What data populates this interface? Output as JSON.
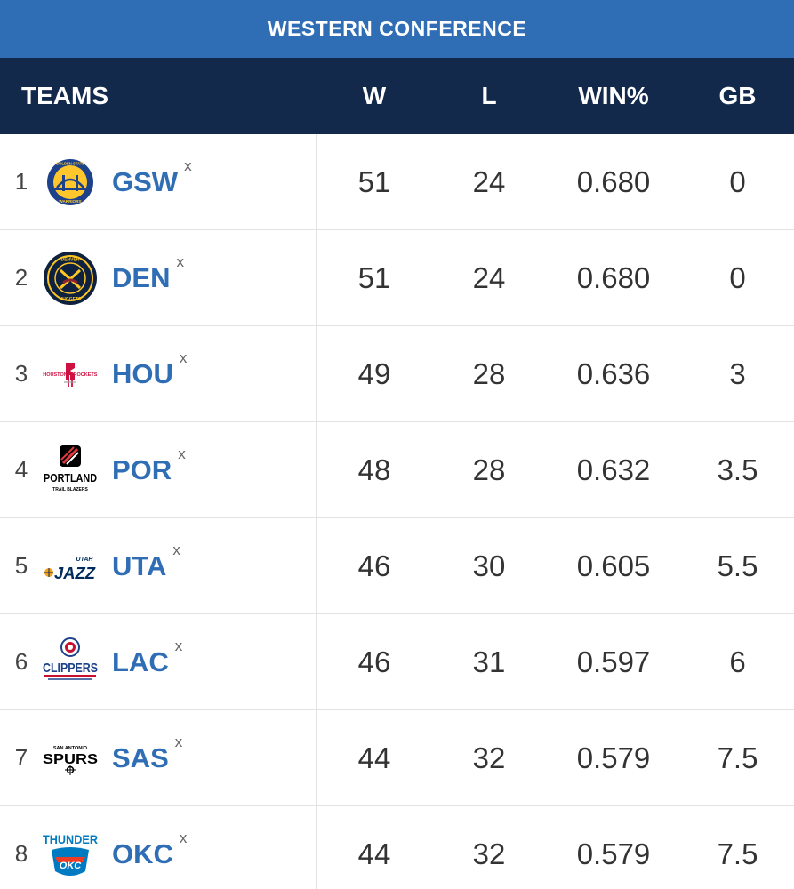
{
  "conference_title": "WESTERN CONFERENCE",
  "columns": {
    "teams": "TEAMS",
    "w": "W",
    "l": "L",
    "pct": "WIN%",
    "gb": "GB"
  },
  "teams": [
    {
      "rank": "1",
      "abbr": "GSW",
      "clinch": "x",
      "w": "51",
      "l": "24",
      "pct": "0.680",
      "gb": "0",
      "logo_icon": "warriors-logo-icon",
      "logo_text": [
        "GOLDEN STATE",
        "WARRIORS"
      ]
    },
    {
      "rank": "2",
      "abbr": "DEN",
      "clinch": "x",
      "w": "51",
      "l": "24",
      "pct": "0.680",
      "gb": "0",
      "logo_icon": "nuggets-logo-icon",
      "logo_text": [
        "DENVER",
        "NUGGETS"
      ]
    },
    {
      "rank": "3",
      "abbr": "HOU",
      "clinch": "x",
      "w": "49",
      "l": "28",
      "pct": "0.636",
      "gb": "3",
      "logo_icon": "rockets-logo-icon",
      "logo_text": [
        "HOUSTON",
        "ROCKETS"
      ]
    },
    {
      "rank": "4",
      "abbr": "POR",
      "clinch": "x",
      "w": "48",
      "l": "28",
      "pct": "0.632",
      "gb": "3.5",
      "logo_icon": "trail-blazers-logo-icon",
      "logo_text": [
        "PORTLAND",
        "TRAIL BLAZERS"
      ]
    },
    {
      "rank": "5",
      "abbr": "UTA",
      "clinch": "x",
      "w": "46",
      "l": "30",
      "pct": "0.605",
      "gb": "5.5",
      "logo_icon": "jazz-logo-icon",
      "logo_text": [
        "UTAH",
        "JAZZ"
      ]
    },
    {
      "rank": "6",
      "abbr": "LAC",
      "clinch": "x",
      "w": "46",
      "l": "31",
      "pct": "0.597",
      "gb": "6",
      "logo_icon": "clippers-logo-icon",
      "logo_text": [
        "CLIPPERS"
      ]
    },
    {
      "rank": "7",
      "abbr": "SAS",
      "clinch": "x",
      "w": "44",
      "l": "32",
      "pct": "0.579",
      "gb": "7.5",
      "logo_icon": "spurs-logo-icon",
      "logo_text": [
        "SAN ANTONIO",
        "SPURS"
      ]
    },
    {
      "rank": "8",
      "abbr": "OKC",
      "clinch": "x",
      "w": "44",
      "l": "32",
      "pct": "0.579",
      "gb": "7.5",
      "logo_icon": "thunder-logo-icon",
      "logo_text": [
        "THUNDER",
        "OKC"
      ]
    }
  ],
  "colors": {
    "banner": "#2f6db5",
    "header": "#13294b",
    "team_link": "#2f6db5",
    "row_divider": "#e3e3e3"
  }
}
